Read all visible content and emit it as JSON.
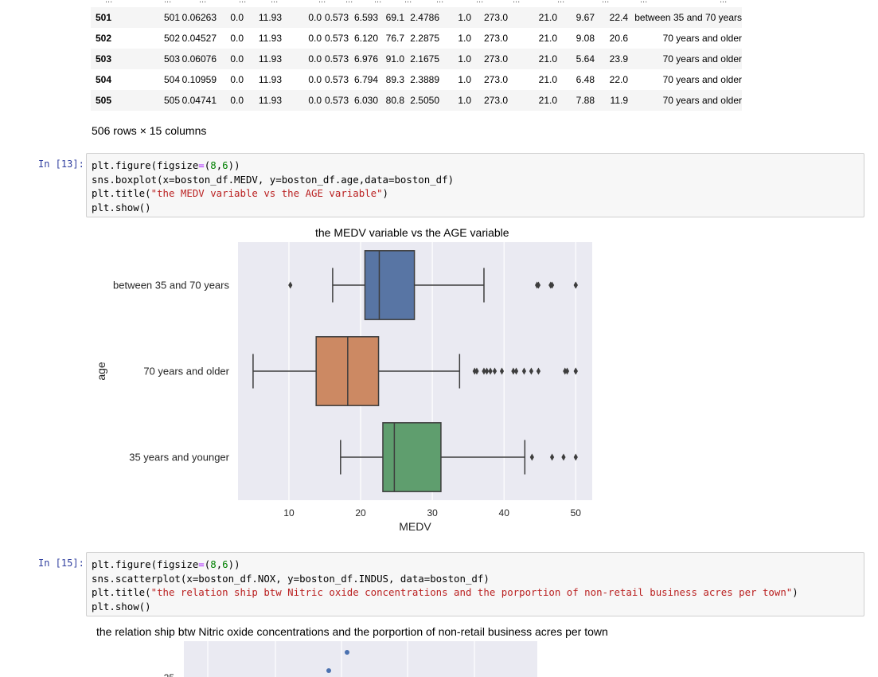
{
  "table": {
    "ellipsis": "...",
    "rows": [
      {
        "index": "501",
        "c": [
          "501",
          "0.06263",
          "0.0",
          "11.93",
          "0.0",
          "0.573",
          "6.593",
          "69.1",
          "2.4786",
          "1.0",
          "273.0",
          "21.0",
          "9.67",
          "22.4",
          "between 35 and 70 years"
        ]
      },
      {
        "index": "502",
        "c": [
          "502",
          "0.04527",
          "0.0",
          "11.93",
          "0.0",
          "0.573",
          "6.120",
          "76.7",
          "2.2875",
          "1.0",
          "273.0",
          "21.0",
          "9.08",
          "20.6",
          "70 years and older"
        ]
      },
      {
        "index": "503",
        "c": [
          "503",
          "0.06076",
          "0.0",
          "11.93",
          "0.0",
          "0.573",
          "6.976",
          "91.0",
          "2.1675",
          "1.0",
          "273.0",
          "21.0",
          "5.64",
          "23.9",
          "70 years and older"
        ]
      },
      {
        "index": "504",
        "c": [
          "504",
          "0.10959",
          "0.0",
          "11.93",
          "0.0",
          "0.573",
          "6.794",
          "89.3",
          "2.3889",
          "1.0",
          "273.0",
          "21.0",
          "6.48",
          "22.0",
          "70 years and older"
        ]
      },
      {
        "index": "505",
        "c": [
          "505",
          "0.04741",
          "0.0",
          "11.93",
          "0.0",
          "0.573",
          "6.030",
          "80.8",
          "2.5050",
          "1.0",
          "273.0",
          "21.0",
          "7.88",
          "11.9",
          "70 years and older"
        ]
      }
    ],
    "shape_info": "506 rows × 15 columns"
  },
  "cell13": {
    "prompt": "In [13]:",
    "line1": {
      "a": "plt.figure(figsize",
      "b": "=",
      "c": "(",
      "d": "8",
      "e": ",",
      "f": "6",
      "g": "))"
    },
    "line2": "sns.boxplot(x=boston_df.MEDV, y=boston_df.age,data=boston_df)",
    "line3": {
      "a": "plt.title(",
      "b": "\"the MEDV variable vs the AGE variable\"",
      "c": ")"
    },
    "line4": "plt.show()"
  },
  "cell15": {
    "prompt": "In [15]:",
    "line1": {
      "a": "plt.figure(figsize",
      "b": "=",
      "c": "(",
      "d": "8",
      "e": ",",
      "f": "6",
      "g": "))"
    },
    "line2": "sns.scatterplot(x=boston_df.NOX, y=boston_df.INDUS, data=boston_df)",
    "line3": {
      "a": "plt.title(",
      "b": "\"the relation ship btw Nitric oxide concentrations and the porportion of non-retail business acres per town\"",
      "c": ")"
    },
    "line4": "plt.show()"
  },
  "chart_data": [
    {
      "type": "box",
      "title": "the MEDV variable vs the AGE variable",
      "xlabel": "MEDV",
      "ylabel": "age",
      "orientation": "horizontal",
      "xlim": [
        2.9,
        52.3
      ],
      "xticks": [
        10,
        20,
        30,
        40,
        50
      ],
      "grid": true,
      "background": "#eaeaf2",
      "categories": [
        "between 35 and 70 years",
        "70 years and older",
        "35 years and younger"
      ],
      "series": [
        {
          "category": "between 35 and 70 years",
          "color": "#5875a4",
          "whisker_low": 16.1,
          "q1": 20.6,
          "median": 22.6,
          "q3": 27.5,
          "whisker_high": 37.2,
          "outliers": [
            10.2,
            44.6,
            44.8,
            46.5,
            46.7,
            50.0,
            50.0
          ]
        },
        {
          "category": "70 years and older",
          "color": "#cc8963",
          "whisker_low": 5.0,
          "q1": 13.8,
          "median": 18.2,
          "q3": 22.5,
          "whisker_high": 33.8,
          "outliers": [
            35.9,
            36.2,
            37.2,
            37.6,
            38.1,
            38.7,
            39.7,
            41.3,
            41.7,
            42.8,
            43.8,
            44.8,
            48.5,
            48.8,
            50.0,
            50.0
          ]
        },
        {
          "category": "35 years and younger",
          "color": "#5f9e6e",
          "whisker_low": 17.2,
          "q1": 23.1,
          "median": 24.7,
          "q3": 31.2,
          "whisker_high": 42.9,
          "outliers": [
            43.9,
            46.7,
            48.3,
            50.0
          ]
        }
      ]
    },
    {
      "type": "scatter",
      "title": "the relation ship btw Nitric oxide concentrations and the porportion of non-retail business acres per town",
      "y_tick_visible": "25",
      "grid": true,
      "background": "#eaeaf2",
      "color": "#4c72b0"
    }
  ]
}
